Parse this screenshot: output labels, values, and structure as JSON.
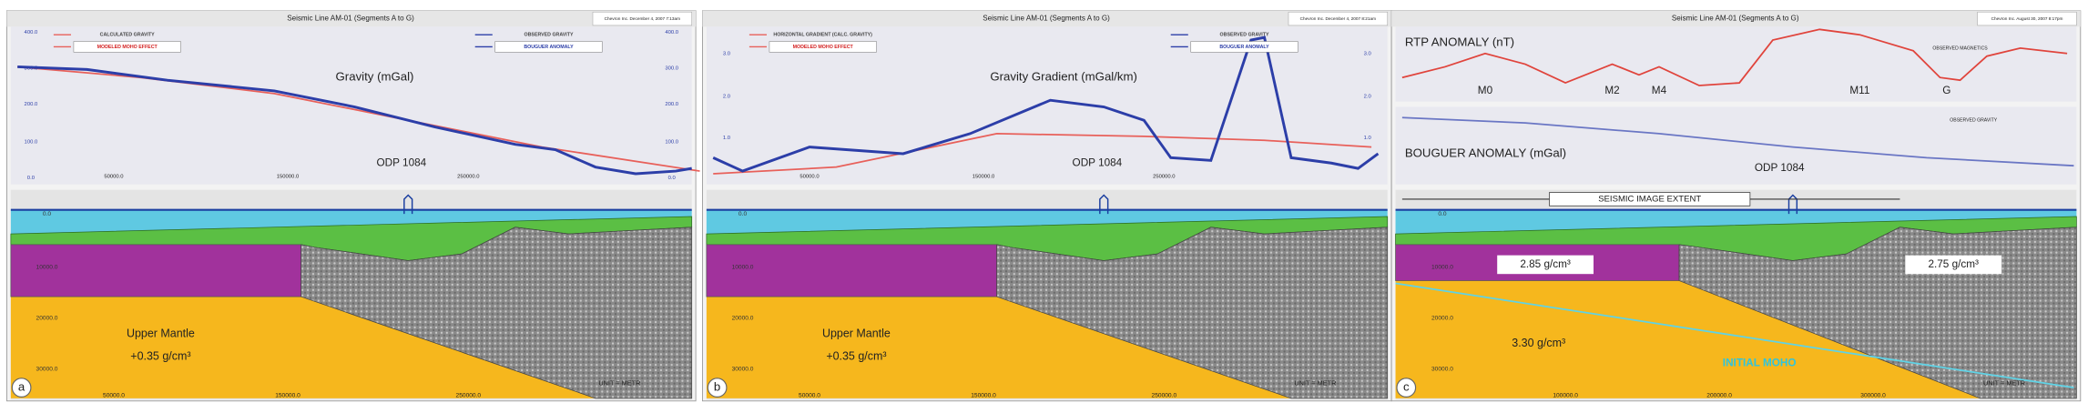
{
  "panels": [
    {
      "letter": "a",
      "title": "Seismic Line AM-01 (Segments A to G)",
      "stamp": "Chevron Inc. December 4, 2007 7:13am",
      "legend": [
        "CALCULATED GRAVITY",
        "MODELED MOHO EFFECT",
        "OBSERVED GRAVITY",
        "BOUGUER ANOMALY"
      ],
      "plot_label": "Gravity (mGal)",
      "site": "ODP 1084",
      "left_ticks": [
        "400.0",
        "300.0",
        "200.0",
        "100.0",
        "0.0"
      ],
      "right_ticks": [
        "400.0",
        "300.0",
        "200.0",
        "100.0",
        "0.0"
      ],
      "plot_xticks": [
        "50000.0",
        "150000.0",
        "250000.0"
      ],
      "depth_ticks": [
        "0.0",
        "10000.0",
        "20000.0",
        "30000.0"
      ],
      "section_xticks": [
        "50000.0",
        "150000.0",
        "250000.0"
      ],
      "layer_labels": [
        "Upper Mantle",
        "+0.35 g/cm³"
      ],
      "unit": "UNIT = METR"
    },
    {
      "letter": "b",
      "title": "Seismic Line AM-01 (Segments A to G)",
      "stamp": "Chevron Inc. December 4, 2007 8:21am",
      "legend": [
        "HORIZONTAL GRADIENT (CALC. GRAVITY)",
        "MODELED MOHO EFFECT",
        "OBSERVED GRAVITY",
        "BOUGUER ANOMALY"
      ],
      "plot_label": "Gravity Gradient (mGal/km)",
      "site": "ODP 1084",
      "left_ticks": [
        "3.0",
        "2.0",
        "1.0"
      ],
      "right_ticks": [
        "3.0",
        "2.0",
        "1.0"
      ],
      "plot_xticks": [
        "50000.0",
        "150000.0",
        "250000.0"
      ],
      "depth_ticks": [
        "0.0",
        "10000.0",
        "20000.0",
        "30000.0"
      ],
      "section_xticks": [
        "50000.0",
        "150000.0",
        "250000.0"
      ],
      "layer_labels": [
        "Upper Mantle",
        "+0.35 g/cm³"
      ],
      "unit": "UNIT = METR"
    },
    {
      "letter": "c",
      "title": "Seismic Line AM-01 (Segments A to G)",
      "stamp": "Chevron Inc. August 30, 2007 8:17pm",
      "rtp_label": "RTP ANOMALY (nT)",
      "anomalies": [
        "M0",
        "M2",
        "M4",
        "M11",
        "G"
      ],
      "rtp_legend": "OBSERVED MAGNETICS",
      "bouguer_label": "BOUGUER ANOMALY (mGal)",
      "bouguer_legend": "OBSERVED GRAVITY",
      "site": "ODP 1084",
      "extent": "SEISMIC IMAGE EXTENT",
      "density_labels": [
        "2.85 g/cm³",
        "2.75 g/cm³",
        "3.30 g/cm³"
      ],
      "moho": "INITIAL MOHO",
      "depth_ticks": [
        "0.0",
        "10000.0",
        "20000.0",
        "30000.0"
      ],
      "section_xticks": [
        "100000.0",
        "200000.0",
        "300000.0"
      ],
      "unit": "UNIT = METR"
    }
  ]
}
